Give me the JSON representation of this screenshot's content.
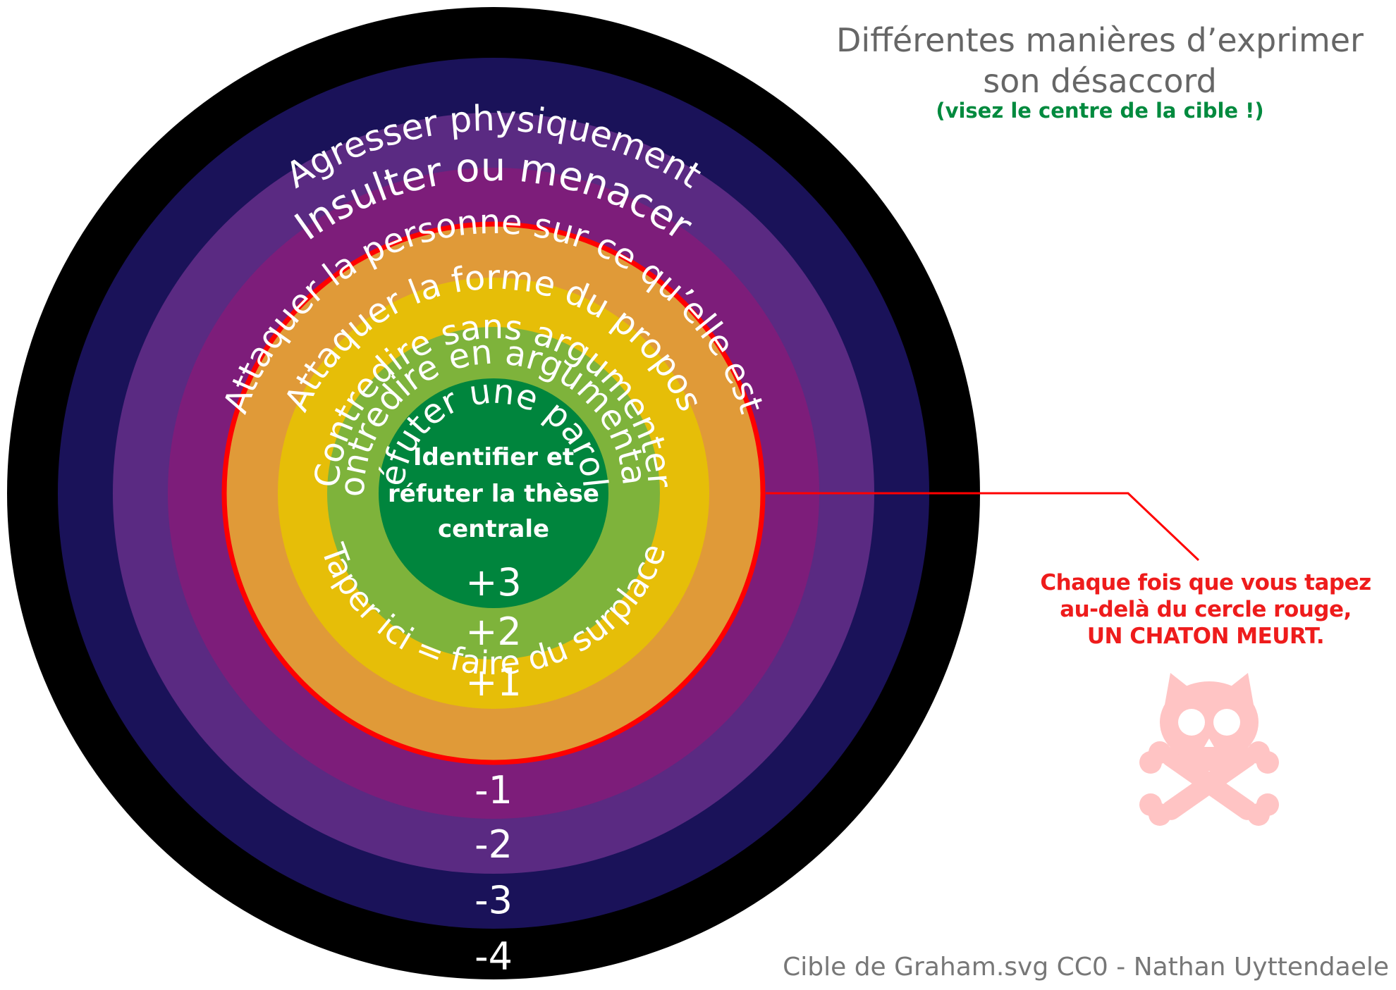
{
  "title_line1": "Différentes manières d’exprimer",
  "title_line2": "son désaccord",
  "subtitle": "(visez le centre de la cible !)",
  "warning": {
    "line1": "Chaque fois que vous tapez",
    "line2": "au-delà du cercle rouge,",
    "line3": "UN CHATON MEURT."
  },
  "credit": "Cible de Graham.svg CC0 - Nathan Uyttendaele",
  "center": {
    "line1": "Identifier et",
    "line2": "réfuter la thèse",
    "line3": "centrale",
    "score": "+3"
  },
  "rings": [
    {
      "label": "Agresser physiquement",
      "score": "-4",
      "color": "#000000"
    },
    {
      "label": "Insulter ou menacer",
      "score": "-3",
      "color": "#1a1259"
    },
    {
      "label": "Attaquer la personne sur ce qu’elle est",
      "score": "-2",
      "color": "#5a2a82"
    },
    {
      "label": "Attaquer la forme du propos",
      "score": "-1",
      "color": "#7d1d7a"
    },
    {
      "label": "Contredire sans argumenter",
      "score": "",
      "color": "#e09a38"
    },
    {
      "label": "Contredire en argumentant",
      "score": "+1",
      "color": "#e6be08"
    },
    {
      "label": "Réfuter une parole",
      "score": "+2",
      "color": "#7eb33b"
    }
  ],
  "surplace_label": "Taper ici = faire du surplace",
  "colors": {
    "center": "#00853d",
    "red_circle": "#ff0000",
    "skull": "#ffc4c4",
    "title": "#666666",
    "subtitle": "#008a3e",
    "warning": "#ee1c1c"
  },
  "icons": [
    "cat-skull-crossbones-icon"
  ]
}
